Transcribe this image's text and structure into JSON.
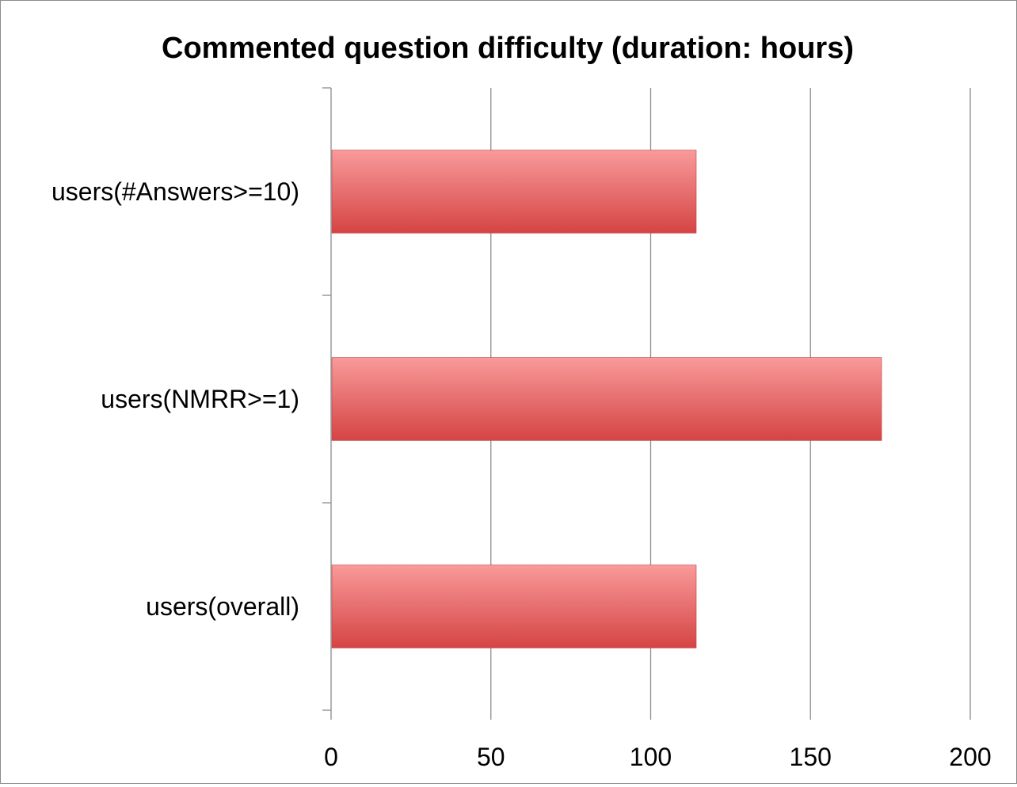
{
  "chart_data": {
    "type": "bar",
    "orientation": "horizontal",
    "title": "Commented question difficulty (duration: hours)",
    "categories": [
      "users(#Answers>=10)",
      "users(NMRR>=1)",
      "users(overall)"
    ],
    "values": [
      114,
      172,
      114
    ],
    "xlim": [
      0,
      200
    ],
    "xticks": [
      "0",
      "50",
      "100",
      "150",
      "200"
    ],
    "xlabel": "",
    "ylabel": "",
    "grid": true,
    "legend": "none",
    "colors": {
      "bar_top": "#f99a9a",
      "bar_bottom": "#d54444",
      "grid": "#8c8c8c",
      "axis": "#8c8c8c"
    }
  }
}
